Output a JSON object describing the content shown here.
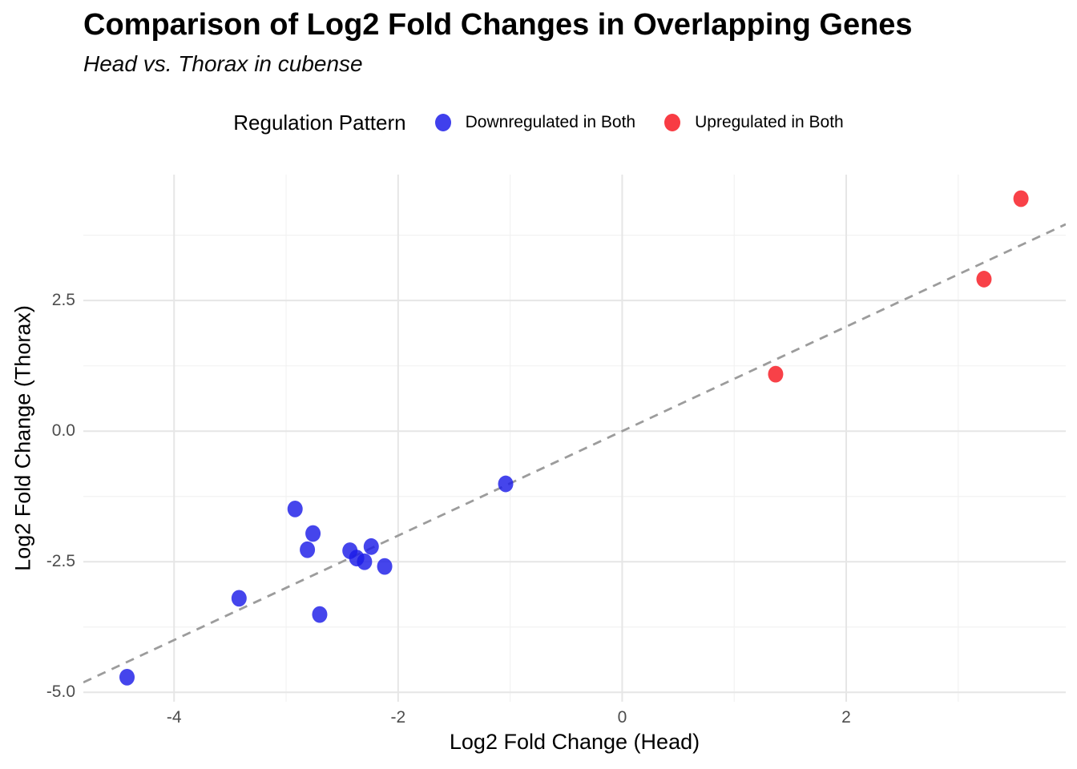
{
  "header": {
    "title": "Comparison of Log2 Fold Changes in Overlapping Genes",
    "subtitle": "Head vs. Thorax in cubense"
  },
  "legend": {
    "title": "Regulation Pattern",
    "items": [
      {
        "label": "Downregulated in Both",
        "color": "#1C1CE8"
      },
      {
        "label": "Upregulated in Both",
        "color": "#F71720"
      }
    ]
  },
  "axes": {
    "x": {
      "title": "Log2 Fold Change (Head)",
      "tick_values": [
        -4,
        -2,
        0,
        2
      ],
      "tick_labels": [
        "-4",
        "-2",
        "0",
        "2"
      ]
    },
    "y": {
      "title": "Log2 Fold Change (Thorax)",
      "tick_values": [
        2.5,
        0,
        -2.5,
        -5
      ],
      "tick_labels": [
        "2.5",
        "0.0",
        "-2.5",
        "-5.0"
      ]
    }
  },
  "colors": {
    "grid_major": "#E6E6E6",
    "grid_minor": "#F2F2F2",
    "reference_line": "#9C9C9C",
    "tick_text": "#4D4D4D",
    "downregulated": "#1C1CE8",
    "upregulated": "#F71720"
  },
  "chart_data": {
    "type": "scatter",
    "title": "Comparison of Log2 Fold Changes in Overlapping Genes",
    "subtitle": "Head vs. Thorax in cubense",
    "xlabel": "Log2 Fold Change (Head)",
    "ylabel": "Log2 Fold Change (Thorax)",
    "xlim": [
      -4.81,
      3.96
    ],
    "ylim": [
      -5.18,
      4.91
    ],
    "x_major_ticks": [
      -4,
      -2,
      0,
      2
    ],
    "x_minor_ticks": [
      -3,
      -1,
      1,
      3
    ],
    "y_major_ticks": [
      2.5,
      0,
      -2.5,
      -5
    ],
    "y_minor_ticks": [
      3.75,
      1.25,
      -1.25,
      -3.75
    ],
    "grid": true,
    "legend_position": "top",
    "point_opacity": 0.82,
    "reference_line": {
      "type": "identity y = x",
      "style": "dashed",
      "color": "#9C9C9C"
    },
    "series": [
      {
        "name": "Downregulated in Both",
        "color": "#1C1CE8",
        "points": [
          [
            -4.42,
            -4.71
          ],
          [
            -3.42,
            -3.2
          ],
          [
            -2.92,
            -1.49
          ],
          [
            -2.81,
            -2.27
          ],
          [
            -2.76,
            -1.96
          ],
          [
            -2.7,
            -3.51
          ],
          [
            -2.43,
            -2.29
          ],
          [
            -2.37,
            -2.43
          ],
          [
            -2.3,
            -2.5
          ],
          [
            -2.24,
            -2.21
          ],
          [
            -2.12,
            -2.59
          ],
          [
            -1.04,
            -1.01
          ]
        ]
      },
      {
        "name": "Upregulated in Both",
        "color": "#F71720",
        "points": [
          [
            1.37,
            1.09
          ],
          [
            3.23,
            2.91
          ],
          [
            3.56,
            4.45
          ]
        ]
      }
    ]
  }
}
